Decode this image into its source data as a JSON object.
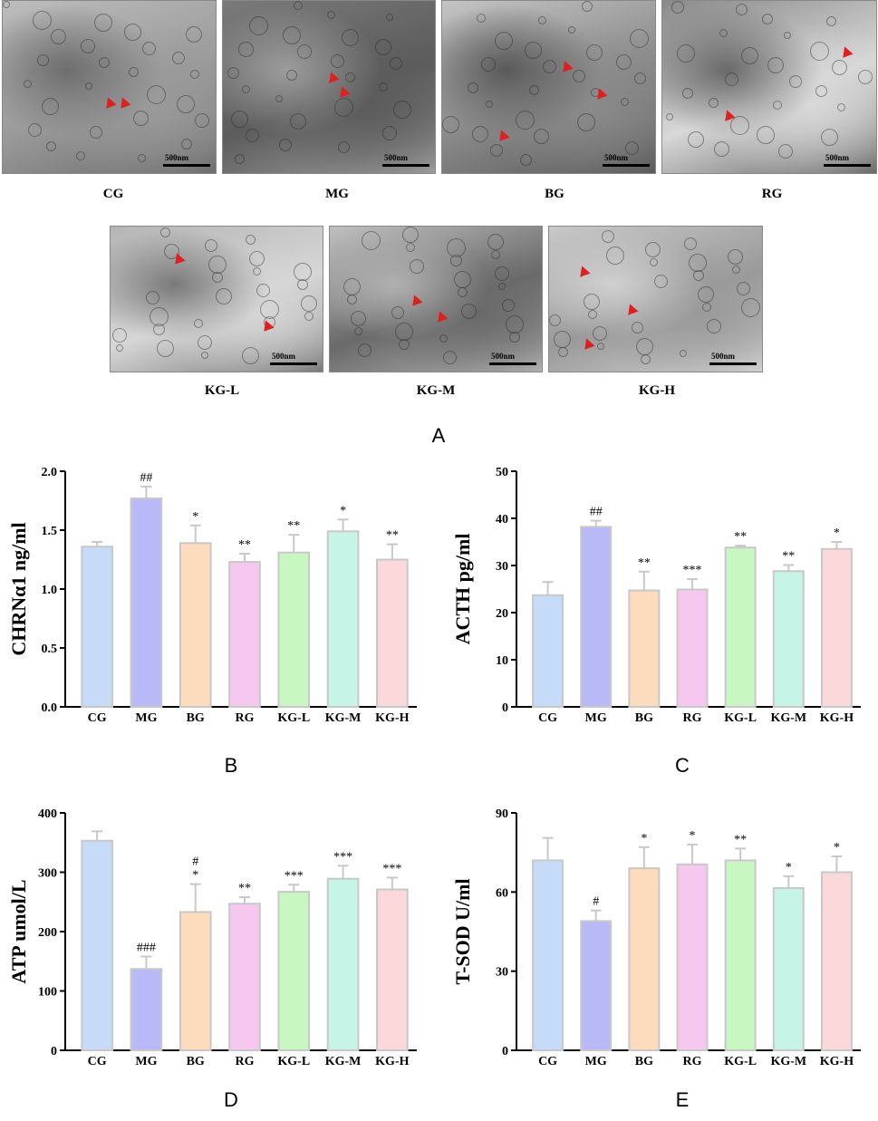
{
  "figure": {
    "panel_letters": {
      "a": "A",
      "b": "B",
      "c": "C",
      "d": "D",
      "e": "E"
    },
    "scale_label": "500nm",
    "micrograph_labels": [
      "CG",
      "MG",
      "BG",
      "RG",
      "KG-L",
      "KG-M",
      "KG-H"
    ],
    "colors": {
      "CG": "#c6dbf7",
      "MG": "#b9b9f8",
      "BG": "#fcdcbd",
      "RG": "#f7c8ef",
      "KG-L": "#c9f7c2",
      "KG-M": "#c6f4e7",
      "KG-H": "#fbd9da",
      "arrow": "#e02020",
      "bar_edge": "#c8c8c8"
    }
  },
  "chart_data": [
    {
      "id": "B",
      "type": "bar",
      "categories": [
        "CG",
        "MG",
        "BG",
        "RG",
        "KG-L",
        "KG-M",
        "KG-H"
      ],
      "values": [
        1.36,
        1.77,
        1.39,
        1.23,
        1.31,
        1.49,
        1.25
      ],
      "errors": [
        0.04,
        0.1,
        0.15,
        0.07,
        0.15,
        0.1,
        0.13
      ],
      "annotations": [
        "",
        "##",
        "*",
        "**",
        "**",
        "*",
        "**"
      ],
      "ylabel": "CHRNα1 ng/ml",
      "ylim": [
        0,
        2.0
      ],
      "yticks": [
        "0.0",
        "0.5",
        "1.0",
        "1.5",
        "2.0"
      ]
    },
    {
      "id": "C",
      "type": "bar",
      "categories": [
        "CG",
        "MG",
        "BG",
        "RG",
        "KG-L",
        "KG-M",
        "KG-H"
      ],
      "values": [
        23.7,
        38.2,
        24.7,
        24.9,
        33.8,
        28.8,
        33.5
      ],
      "errors": [
        2.8,
        1.3,
        4.0,
        2.2,
        0.4,
        1.3,
        1.5
      ],
      "annotations": [
        "",
        "##",
        "**",
        "***",
        "**",
        "**",
        "*"
      ],
      "ylabel": "ACTH pg/ml",
      "ylim": [
        0,
        50
      ],
      "yticks": [
        "0",
        "10",
        "20",
        "30",
        "40",
        "50"
      ]
    },
    {
      "id": "D",
      "type": "bar",
      "categories": [
        "CG",
        "MG",
        "BG",
        "RG",
        "KG-L",
        "KG-M",
        "KG-H"
      ],
      "values": [
        353,
        137,
        233,
        247,
        267,
        289,
        271
      ],
      "errors": [
        16,
        21,
        47,
        11,
        12,
        22,
        20
      ],
      "annotations": [
        "",
        "###",
        "#\n*",
        "**",
        "***",
        "***",
        "***"
      ],
      "ylabel": "ATP umol/L",
      "ylim": [
        0,
        400
      ],
      "yticks": [
        "0",
        "100",
        "200",
        "300",
        "400"
      ]
    },
    {
      "id": "E",
      "type": "bar",
      "categories": [
        "CG",
        "MG",
        "BG",
        "RG",
        "KG-L",
        "KG-M",
        "KG-H"
      ],
      "values": [
        72,
        49,
        69,
        70.5,
        72,
        61.5,
        67.5
      ],
      "errors": [
        8.5,
        4,
        8,
        7.5,
        4.5,
        4.5,
        6
      ],
      "annotations": [
        "",
        "#",
        "*",
        "*",
        "**",
        "*",
        "*"
      ],
      "ylabel": "T-SOD U/ml",
      "ylim": [
        0,
        90
      ],
      "yticks": [
        "0",
        "30",
        "60",
        "90"
      ]
    }
  ]
}
